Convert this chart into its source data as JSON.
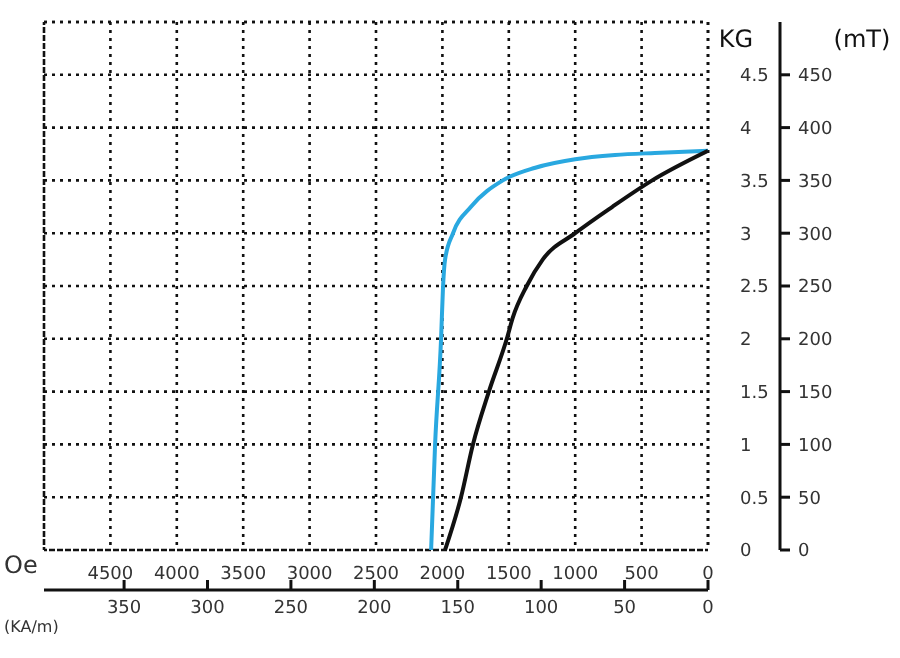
{
  "chart_data": {
    "type": "line",
    "xlabel": "Oe",
    "x2label": "(KA/m)",
    "ylabel": "KG",
    "y2label": "(mT)",
    "xlim": [
      5000,
      0
    ],
    "xticks": [
      4500,
      4000,
      3500,
      3000,
      2500,
      2000,
      1500,
      1000,
      500,
      0
    ],
    "x2lim": [
      398,
      0
    ],
    "x2ticks": [
      350,
      300,
      250,
      200,
      150,
      100,
      50,
      0
    ],
    "ylim": [
      0,
      5
    ],
    "yticks": [
      0,
      0.5,
      1,
      1.5,
      2,
      2.5,
      3,
      3.5,
      4,
      4.5
    ],
    "y2lim": [
      0,
      500
    ],
    "y2ticks": [
      0,
      50,
      100,
      150,
      200,
      250,
      300,
      350,
      400,
      450
    ],
    "grid": true,
    "marker": "none",
    "line_style": "solid",
    "series": [
      {
        "color": "#29a8e0",
        "x": [
          2085,
          2055,
          2010,
          1995,
          1980,
          1920,
          1785,
          1545,
          1300,
          1000,
          700,
          400,
          0
        ],
        "values": [
          0,
          1,
          2,
          2.5,
          2.75,
          3,
          3.25,
          3.5,
          3.62,
          3.7,
          3.74,
          3.76,
          3.78
        ]
      },
      {
        "color": "#111111",
        "x": [
          1980,
          1860,
          1770,
          1650,
          1515,
          1470,
          1365,
          1245,
          1000,
          720,
          420,
          0
        ],
        "values": [
          0,
          0.5,
          1,
          1.5,
          2,
          2.2,
          2.5,
          2.75,
          3,
          3.25,
          3.5,
          3.78
        ]
      }
    ]
  }
}
